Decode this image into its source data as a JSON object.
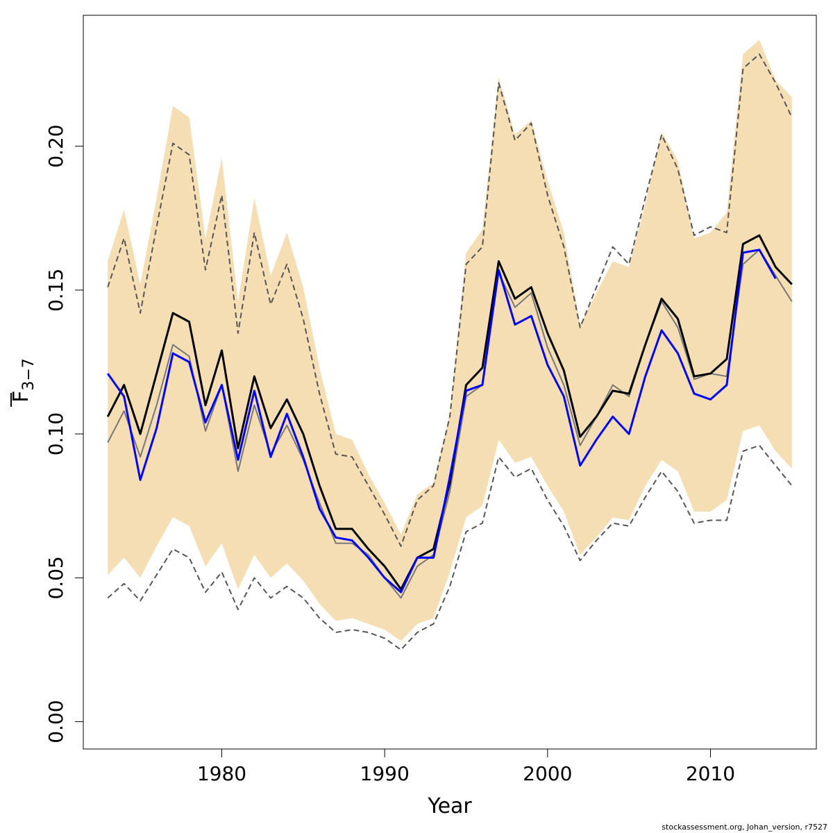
{
  "chart_data": {
    "type": "line",
    "title": "",
    "xlabel": "Year",
    "ylabel_main": "F",
    "ylabel_sub": "3−7",
    "xlim": [
      1971.5,
      2016.5
    ],
    "ylim": [
      -0.0095,
      0.2455
    ],
    "xticks": [
      1980,
      1990,
      2000,
      2010
    ],
    "xtick_labels": [
      "1980",
      "1990",
      "2000",
      "2010"
    ],
    "yticks": [
      0.0,
      0.05,
      0.1,
      0.15,
      0.2
    ],
    "ytick_labels": [
      "0.00",
      "0.05",
      "0.10",
      "0.15",
      "0.20"
    ],
    "grid": false,
    "legend": "none",
    "x": [
      1973,
      1974,
      1975,
      1976,
      1977,
      1978,
      1979,
      1980,
      1981,
      1982,
      1983,
      1984,
      1985,
      1986,
      1987,
      1988,
      1989,
      1990,
      1991,
      1992,
      1993,
      1994,
      1995,
      1996,
      1997,
      1998,
      1999,
      2000,
      2001,
      2002,
      2003,
      2004,
      2005,
      2006,
      2007,
      2008,
      2009,
      2010,
      2011,
      2012,
      2013,
      2014,
      2015
    ],
    "band": {
      "color": "#f5deb3",
      "upper": [
        0.16,
        0.178,
        0.152,
        0.182,
        0.214,
        0.21,
        0.168,
        0.196,
        0.146,
        0.182,
        0.155,
        0.17,
        0.151,
        0.123,
        0.1,
        0.098,
        0.086,
        0.076,
        0.065,
        0.079,
        0.083,
        0.107,
        0.163,
        0.171,
        0.224,
        0.204,
        0.209,
        0.188,
        0.17,
        0.138,
        0.149,
        0.16,
        0.158,
        0.18,
        0.205,
        0.195,
        0.168,
        0.17,
        0.177,
        0.232,
        0.237,
        0.223,
        0.217
      ],
      "lower": [
        0.051,
        0.057,
        0.05,
        0.061,
        0.071,
        0.068,
        0.054,
        0.062,
        0.046,
        0.058,
        0.05,
        0.055,
        0.049,
        0.041,
        0.035,
        0.036,
        0.034,
        0.032,
        0.028,
        0.034,
        0.036,
        0.052,
        0.071,
        0.075,
        0.098,
        0.09,
        0.092,
        0.082,
        0.073,
        0.058,
        0.064,
        0.071,
        0.07,
        0.082,
        0.091,
        0.087,
        0.073,
        0.073,
        0.077,
        0.101,
        0.103,
        0.094,
        0.088
      ]
    },
    "series": [
      {
        "color": "#555555",
        "style": "dashed",
        "width": 2,
        "values": [
          0.151,
          0.168,
          0.142,
          0.172,
          0.201,
          0.197,
          0.157,
          0.183,
          0.135,
          0.17,
          0.145,
          0.159,
          0.14,
          0.114,
          0.093,
          0.092,
          0.082,
          0.072,
          0.061,
          0.077,
          0.082,
          0.106,
          0.159,
          0.165,
          0.222,
          0.202,
          0.208,
          0.183,
          0.165,
          0.137,
          0.151,
          0.165,
          0.159,
          0.182,
          0.204,
          0.192,
          0.169,
          0.172,
          0.17,
          0.227,
          0.232,
          0.222,
          0.21
        ]
      },
      {
        "color": "#555555",
        "style": "dashed",
        "width": 2,
        "values": [
          0.043,
          0.048,
          0.042,
          0.051,
          0.06,
          0.057,
          0.045,
          0.052,
          0.039,
          0.05,
          0.043,
          0.047,
          0.043,
          0.036,
          0.031,
          0.032,
          0.031,
          0.029,
          0.025,
          0.031,
          0.034,
          0.047,
          0.066,
          0.069,
          0.092,
          0.085,
          0.088,
          0.077,
          0.068,
          0.056,
          0.063,
          0.069,
          0.068,
          0.078,
          0.087,
          0.08,
          0.069,
          0.07,
          0.07,
          0.094,
          0.096,
          0.089,
          0.082
        ]
      },
      {
        "color": "#777777",
        "style": "solid",
        "width": 2,
        "values": [
          0.097,
          0.108,
          0.092,
          0.11,
          0.131,
          0.127,
          0.101,
          0.117,
          0.087,
          0.11,
          0.093,
          0.103,
          0.091,
          0.076,
          0.062,
          0.062,
          0.058,
          0.05,
          0.043,
          0.054,
          0.058,
          0.08,
          0.113,
          0.117,
          0.156,
          0.144,
          0.149,
          0.13,
          0.117,
          0.096,
          0.106,
          0.117,
          0.113,
          0.131,
          0.146,
          0.137,
          0.119,
          0.121,
          0.12,
          0.159,
          0.164,
          0.155,
          0.146
        ]
      },
      {
        "color": "#000000",
        "style": "solid",
        "width": 3,
        "values": [
          0.106,
          0.117,
          0.1,
          0.121,
          0.142,
          0.139,
          0.11,
          0.129,
          0.095,
          0.12,
          0.102,
          0.112,
          0.1,
          0.082,
          0.067,
          0.067,
          0.06,
          0.054,
          0.046,
          0.057,
          0.06,
          0.083,
          0.117,
          0.123,
          0.16,
          0.147,
          0.151,
          0.135,
          0.122,
          0.099,
          0.106,
          0.115,
          0.114,
          0.131,
          0.147,
          0.14,
          0.12,
          0.121,
          0.126,
          0.166,
          0.169,
          0.158,
          0.152
        ]
      },
      {
        "color": "#0000ff",
        "style": "solid",
        "width": 3,
        "values": [
          0.121,
          0.113,
          0.084,
          0.102,
          0.128,
          0.125,
          0.104,
          0.117,
          0.091,
          0.115,
          0.092,
          0.107,
          0.092,
          0.074,
          0.064,
          0.063,
          0.057,
          0.05,
          0.045,
          0.057,
          0.057,
          0.085,
          0.115,
          0.117,
          0.157,
          0.138,
          0.141,
          0.124,
          0.113,
          0.089,
          0.098,
          0.106,
          0.1,
          0.12,
          0.136,
          0.128,
          0.114,
          0.112,
          0.117,
          0.163,
          0.164,
          0.154,
          null
        ]
      }
    ]
  },
  "footer": {
    "note": "stockassessment.org, Johan_version, r7527"
  }
}
